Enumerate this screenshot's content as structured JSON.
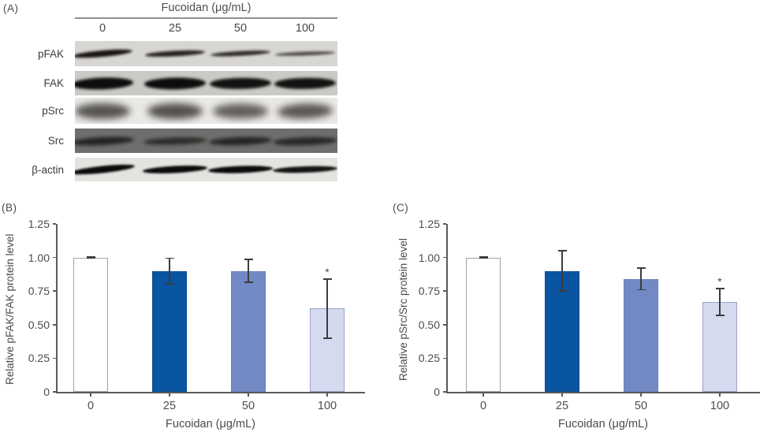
{
  "panel_a": {
    "label": "(A)",
    "header": "Fucoidan (μg/mL)",
    "lanes": [
      "0",
      "25",
      "50",
      "100"
    ],
    "rows": [
      {
        "label": "pFAK",
        "style": "pfak",
        "bg": "#d8d6d3",
        "band_color": "#17150f",
        "lane_opacity": [
          1,
          0.92,
          0.88,
          0.72
        ]
      },
      {
        "label": "FAK",
        "style": "fak",
        "bg": "#cbc9c6",
        "band_color": "#0e0d0c",
        "lane_opacity": [
          1,
          1,
          0.97,
          0.97
        ]
      },
      {
        "label": "pSrc",
        "style": "psrc",
        "bg": "#eae8e5",
        "band_color": "#4e4c4a",
        "lane_opacity": [
          0.95,
          0.97,
          0.88,
          0.93
        ]
      },
      {
        "label": "Src",
        "style": "src",
        "bg": "#6f6e6c",
        "band_color": "#1c1b1a",
        "lane_opacity": [
          0.9,
          0.8,
          0.88,
          0.85
        ]
      },
      {
        "label": "β-actin",
        "style": "actin",
        "bg": "#e5e3e0",
        "band_color": "#0b0b0b",
        "lane_opacity": [
          1,
          1,
          1,
          0.96
        ]
      }
    ]
  },
  "chart_data": [
    {
      "type": "bar",
      "panel_label": "(B)",
      "categories": [
        "0",
        "25",
        "50",
        "100"
      ],
      "values": [
        1.0,
        0.9,
        0.9,
        0.62
      ],
      "errors": [
        0.005,
        0.095,
        0.085,
        0.22
      ],
      "significance": [
        "",
        "",
        "",
        "*"
      ],
      "xlabel": "Fucoidan (μg/mL)",
      "ylabel": "Relative pFAK/FAK protein level",
      "ylim": [
        0,
        1.25
      ],
      "yticks": [
        0,
        0.25,
        0.5,
        0.75,
        1.0,
        1.25
      ],
      "ytick_labels": [
        "0",
        "0.25",
        "0.50",
        "0.75",
        "1.00",
        "1.25"
      ],
      "grid": false,
      "legend": "none",
      "bar_fill": [
        "#ffffff",
        "#0a55a1",
        "#7289c4",
        "#d5daee"
      ],
      "bar_border": [
        "#a2a2a2",
        "#094e95",
        "#6a81bd",
        "#9aa3c8"
      ]
    },
    {
      "type": "bar",
      "panel_label": "(C)",
      "categories": [
        "0",
        "25",
        "50",
        "100"
      ],
      "values": [
        1.0,
        0.9,
        0.84,
        0.67
      ],
      "errors": [
        0.005,
        0.15,
        0.08,
        0.1
      ],
      "significance": [
        "",
        "",
        "",
        "*"
      ],
      "xlabel": "Fucoidan (μg/mL)",
      "ylabel": "Relative pSrc/Src protein level",
      "ylim": [
        0,
        1.25
      ],
      "yticks": [
        0,
        0.25,
        0.5,
        0.75,
        1.0,
        1.25
      ],
      "ytick_labels": [
        "0",
        "0.25",
        "0.50",
        "0.75",
        "1.00",
        "1.25"
      ],
      "grid": false,
      "legend": "none",
      "bar_fill": [
        "#ffffff",
        "#0a55a1",
        "#7289c4",
        "#d5daee"
      ],
      "bar_border": [
        "#a2a2a2",
        "#094e95",
        "#6a81bd",
        "#9aa3c8"
      ]
    }
  ]
}
